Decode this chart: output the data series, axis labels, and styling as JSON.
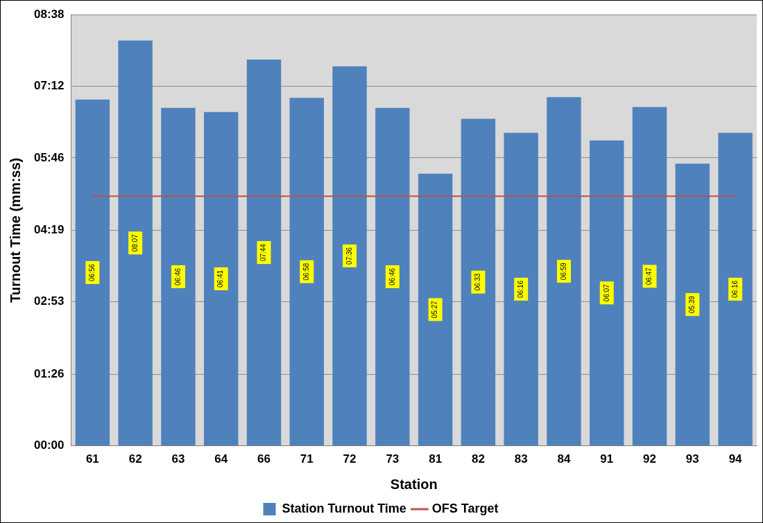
{
  "chart_data": {
    "type": "bar",
    "xlabel": "Station",
    "ylabel": "Turnout Time (mm:ss)",
    "categories": [
      "61",
      "62",
      "63",
      "64",
      "66",
      "71",
      "72",
      "73",
      "81",
      "82",
      "83",
      "84",
      "91",
      "92",
      "93",
      "94"
    ],
    "series": [
      {
        "name": "Station Turnout Time",
        "color": "#4f81bd",
        "values": [
          416,
          487,
          406,
          401,
          464,
          418,
          456,
          406,
          327,
          393,
          376,
          419,
          367,
          407,
          339,
          376
        ],
        "value_labels": [
          "06:56",
          "08:07",
          "06:46",
          "06:41",
          "07:44",
          "06:58",
          "07:36",
          "06:46",
          "05:27",
          "06:33",
          "06:16",
          "06:59",
          "06:07",
          "06:47",
          "05:39",
          "06:16"
        ]
      },
      {
        "name": "OFS Target",
        "type": "line",
        "color": "#c0504d",
        "values": [
          300,
          300,
          300,
          300,
          300,
          300,
          300,
          300,
          300,
          300,
          300,
          300,
          300,
          300,
          300,
          300
        ]
      }
    ],
    "ylim": [
      0,
      518
    ],
    "yticks": [
      {
        "value": 0,
        "label": "00:00"
      },
      {
        "value": 86,
        "label": "01:26"
      },
      {
        "value": 173,
        "label": "02:53"
      },
      {
        "value": 259,
        "label": "04:19"
      },
      {
        "value": 346,
        "label": "05:46"
      },
      {
        "value": 432,
        "label": "07:12"
      },
      {
        "value": 518,
        "label": "08:38"
      }
    ],
    "grid": "y",
    "legend": "bottom",
    "marker": "none"
  }
}
